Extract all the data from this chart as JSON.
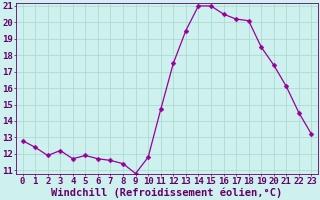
{
  "x": [
    0,
    1,
    2,
    3,
    4,
    5,
    6,
    7,
    8,
    9,
    10,
    11,
    12,
    13,
    14,
    15,
    16,
    17,
    18,
    19,
    20,
    21,
    22,
    23
  ],
  "y": [
    12.8,
    12.4,
    11.9,
    12.2,
    11.7,
    11.9,
    11.7,
    11.6,
    11.4,
    10.8,
    11.8,
    14.7,
    17.5,
    19.5,
    21.0,
    21.0,
    20.5,
    20.2,
    20.1,
    18.5,
    17.4,
    16.1,
    14.5,
    13.2
  ],
  "xlabel": "Windchill (Refroidissement éolien,°C)",
  "ylim": [
    11,
    21
  ],
  "yticks": [
    11,
    12,
    13,
    14,
    15,
    16,
    17,
    18,
    19,
    20,
    21
  ],
  "xticks": [
    0,
    1,
    2,
    3,
    4,
    5,
    6,
    7,
    8,
    9,
    10,
    11,
    12,
    13,
    14,
    15,
    16,
    17,
    18,
    19,
    20,
    21,
    22,
    23
  ],
  "line_color": "#990099",
  "marker": "D",
  "marker_size": 2.5,
  "bg_color": "#cef0ee",
  "grid_color": "#aaddcc",
  "tick_label_fontsize": 6.5,
  "xlabel_fontsize": 7.5
}
